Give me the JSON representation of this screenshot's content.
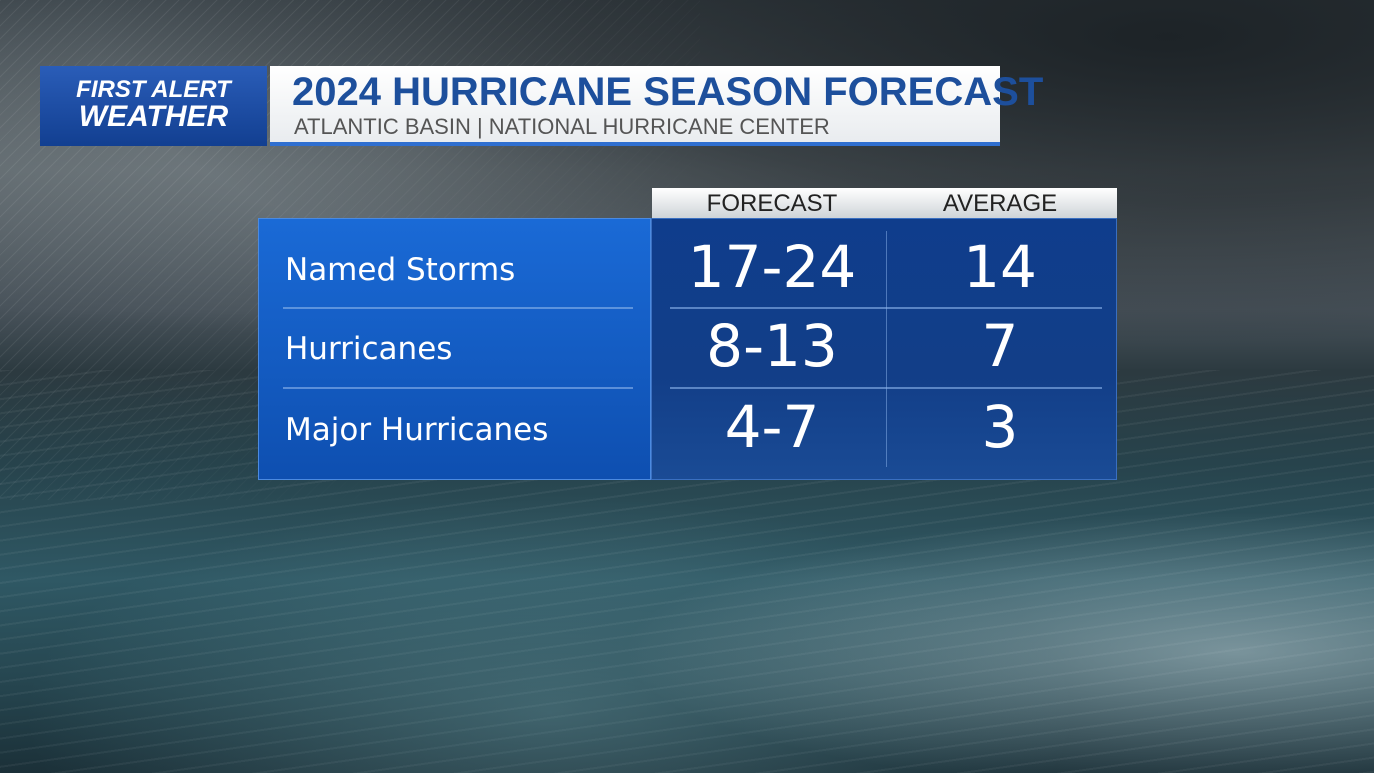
{
  "logo": {
    "line1": "FIRST ALERT",
    "line2": "WEATHER"
  },
  "header": {
    "title": "2024 HURRICANE SEASON FORECAST",
    "subtitle": "ATLANTIC BASIN | NATIONAL HURRICANE CENTER"
  },
  "table": {
    "columns": [
      "FORECAST",
      "AVERAGE"
    ],
    "rows": [
      [
        "Named Storms",
        "17-24",
        14
      ],
      [
        "Hurricanes",
        "8-13",
        7
      ],
      [
        "Major Hurricanes",
        "4-7",
        3
      ]
    ]
  }
}
